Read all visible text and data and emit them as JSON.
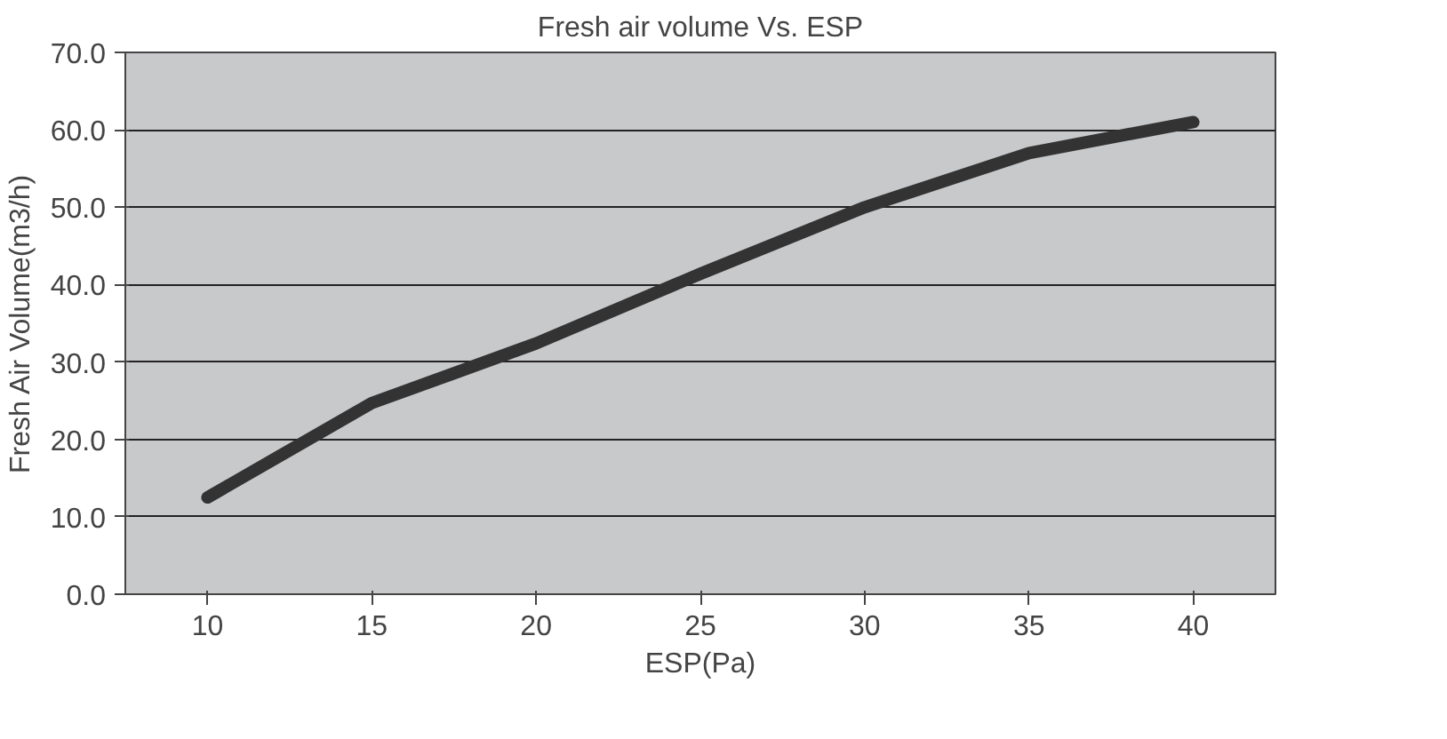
{
  "chart_data": {
    "type": "line",
    "title": "Fresh air volume Vs. ESP",
    "xlabel": "ESP(Pa)",
    "ylabel": "Fresh Air Volume(m3/h)",
    "categories": [
      "10",
      "15",
      "20",
      "25",
      "30",
      "35",
      "40"
    ],
    "series": [
      {
        "color": "#333333",
        "values": [
          12.5,
          24.7,
          32.4,
          41.4,
          50.0,
          57.0,
          61.0
        ]
      }
    ],
    "ylim": [
      0,
      70
    ],
    "yticks": [
      {
        "value": 0,
        "label": "0.0"
      },
      {
        "value": 10,
        "label": "10.0"
      },
      {
        "value": 20,
        "label": "20.0"
      },
      {
        "value": 30,
        "label": "30.0"
      },
      {
        "value": 40,
        "label": "40.0"
      },
      {
        "value": 50,
        "label": "50.0"
      },
      {
        "value": 60,
        "label": "60.0"
      },
      {
        "value": 70,
        "label": "70.0"
      }
    ],
    "grid": "y",
    "marker": "none",
    "line_style": "solid"
  }
}
